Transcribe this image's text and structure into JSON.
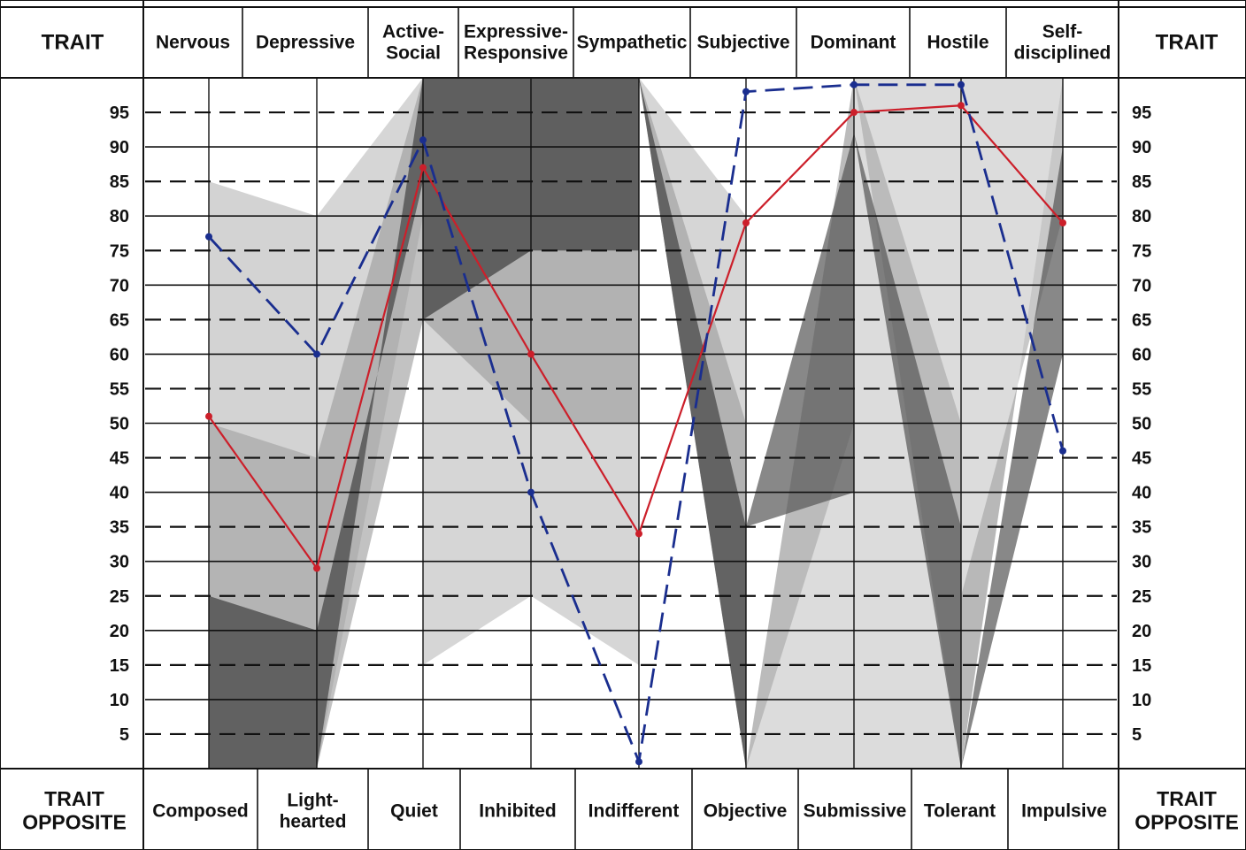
{
  "chart_data": {
    "type": "line",
    "corner_header": "TRAIT",
    "corner_footer": [
      "TRAIT",
      "OPPOSITE"
    ],
    "traits": [
      [
        "Nervous"
      ],
      [
        "Depressive"
      ],
      [
        "Active-",
        "Social"
      ],
      [
        "Expressive-",
        "Responsive"
      ],
      [
        "Sympathetic"
      ],
      [
        "Subjective"
      ],
      [
        "Dominant"
      ],
      [
        "Hostile"
      ],
      [
        "Self-",
        "disciplined"
      ]
    ],
    "opposites": [
      [
        "Composed"
      ],
      [
        "Light-",
        "hearted"
      ],
      [
        "Quiet"
      ],
      [
        "Inhibited"
      ],
      [
        "Indifferent"
      ],
      [
        "Objective"
      ],
      [
        "Submissive"
      ],
      [
        "Tolerant"
      ],
      [
        "Impulsive"
      ]
    ],
    "y_ticks": [
      95,
      90,
      85,
      80,
      75,
      70,
      65,
      60,
      55,
      50,
      45,
      40,
      35,
      30,
      25,
      20,
      15,
      10,
      5
    ],
    "ylim": [
      0,
      100
    ],
    "grid": true,
    "series": [
      {
        "color": "#cc1f2a",
        "style": "solid",
        "values": [
          51,
          29,
          87,
          60,
          34,
          79,
          95,
          96,
          79
        ]
      },
      {
        "color": "#1a2e8f",
        "style": "dashed",
        "values": [
          77,
          60,
          91,
          40,
          1,
          98,
          99,
          99,
          46
        ]
      }
    ],
    "shade_colors": [
      "#c4c4c4",
      "#9a9a9a",
      "#555555"
    ]
  }
}
